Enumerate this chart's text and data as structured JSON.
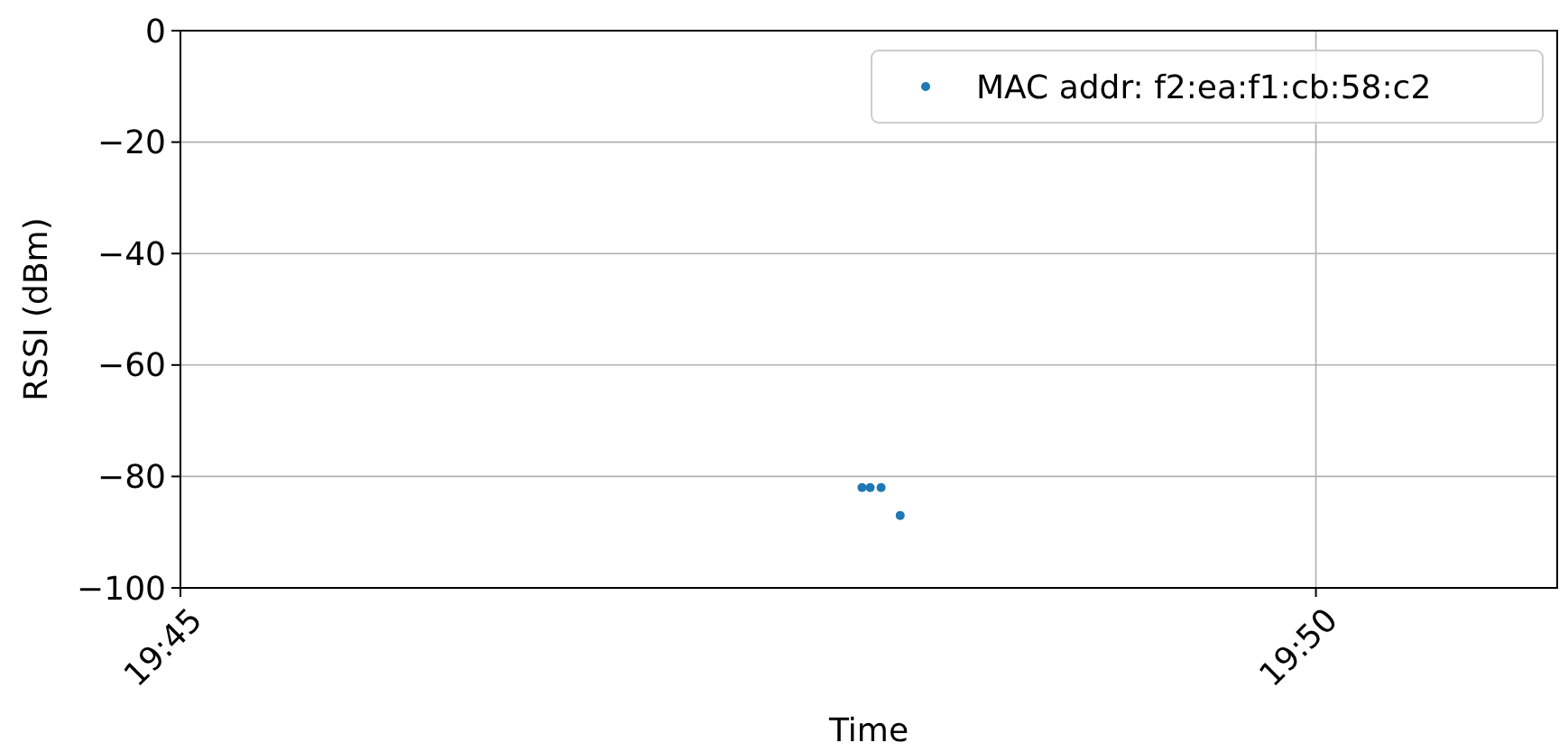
{
  "chart_data": {
    "type": "scatter",
    "xlabel": "Time",
    "ylabel": "RSSI (dBm)",
    "x": [
      19.8,
      19.8006,
      19.8014,
      19.8028
    ],
    "series": [
      {
        "name": "MAC addr: f2:ea:f1:cb:58:c2",
        "color": "#1f77b4",
        "values": [
          -82,
          -82,
          -82,
          -87
        ]
      }
    ],
    "xlim": [
      19.75,
      19.851
    ],
    "xticks": [
      {
        "value": 19.75,
        "label": "19:45"
      },
      {
        "value": 19.8333,
        "label": "19:50"
      }
    ],
    "ylim": [
      -100,
      0
    ],
    "yticks": [
      -100,
      -80,
      -60,
      -40,
      -20,
      0
    ],
    "grid": true,
    "legend": "top right",
    "marker": "circle"
  }
}
